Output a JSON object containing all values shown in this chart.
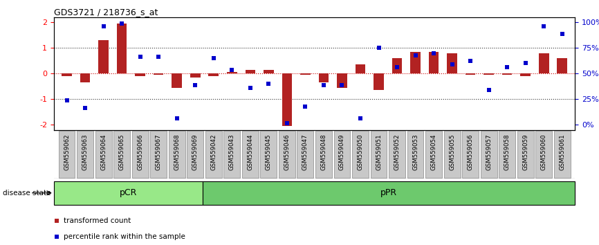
{
  "title": "GDS3721 / 218736_s_at",
  "samples": [
    "GSM559062",
    "GSM559063",
    "GSM559064",
    "GSM559065",
    "GSM559066",
    "GSM559067",
    "GSM559068",
    "GSM559069",
    "GSM559042",
    "GSM559043",
    "GSM559044",
    "GSM559045",
    "GSM559046",
    "GSM559047",
    "GSM559048",
    "GSM559049",
    "GSM559050",
    "GSM559051",
    "GSM559052",
    "GSM559053",
    "GSM559054",
    "GSM559055",
    "GSM559056",
    "GSM559057",
    "GSM559058",
    "GSM559059",
    "GSM559060",
    "GSM559061"
  ],
  "bar_values": [
    -0.1,
    -0.35,
    1.3,
    1.95,
    -0.1,
    -0.05,
    -0.55,
    -0.15,
    -0.1,
    0.05,
    0.15,
    0.15,
    -2.05,
    -0.05,
    -0.35,
    -0.55,
    0.35,
    -0.65,
    0.6,
    0.85,
    0.85,
    0.8,
    -0.05,
    -0.05,
    -0.05,
    -0.1,
    0.8,
    0.6
  ],
  "dot_values": [
    -1.05,
    -1.35,
    1.85,
    1.95,
    0.65,
    0.65,
    -1.75,
    -0.45,
    0.6,
    0.15,
    -0.55,
    -0.4,
    -1.95,
    -1.3,
    -0.45,
    -0.45,
    -1.75,
    1.0,
    0.25,
    0.7,
    0.8,
    0.35,
    0.5,
    -0.65,
    0.25,
    0.4,
    1.85,
    1.55
  ],
  "pCR_count": 8,
  "bar_color": "#B22222",
  "dot_color": "#0000CC",
  "zero_line_color": "#CC0000",
  "dotted_line_color": "#333333",
  "pCR_color": "#98E888",
  "pPR_color": "#6DC96D",
  "bg_color": "#FFFFFF",
  "ylim": [
    -2.2,
    2.2
  ],
  "y_left_ticks": [
    -2,
    -1,
    0,
    1,
    2
  ],
  "y_right_positions": [
    -2,
    -1,
    0,
    1,
    2
  ],
  "y_right_labels": [
    "0%",
    "25%",
    "50%",
    "75%",
    "100%"
  ],
  "y2_label_color": "#0000CC",
  "tick_bg_color": "#C8C8C8",
  "tick_border_color": "#888888"
}
